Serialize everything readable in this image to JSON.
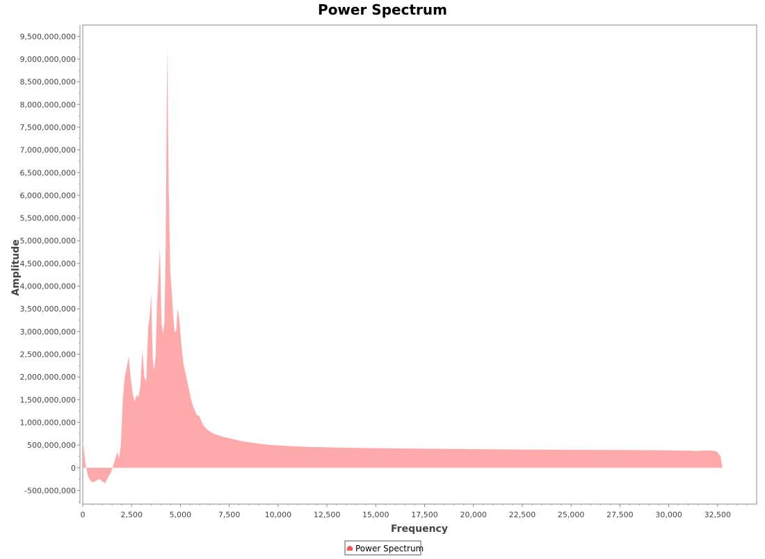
{
  "chart_data": {
    "type": "area",
    "title": "Power Spectrum",
    "xlabel": "Frequency",
    "ylabel": "Amplitude",
    "xlim": [
      0,
      34500
    ],
    "ylim": [
      -800000000,
      9750000000
    ],
    "x_ticks": [
      0,
      2500,
      5000,
      7500,
      10000,
      12500,
      15000,
      17500,
      20000,
      22500,
      25000,
      27500,
      30000,
      32500
    ],
    "x_tick_labels": [
      "0",
      "2,500",
      "5,000",
      "7,500",
      "10,000",
      "12,500",
      "15,000",
      "17,500",
      "20,000",
      "22,500",
      "25,000",
      "27,500",
      "30,000",
      "32,500"
    ],
    "y_ticks": [
      -500000000,
      0,
      500000000,
      1000000000,
      1500000000,
      2000000000,
      2500000000,
      3000000000,
      3500000000,
      4000000000,
      4500000000,
      5000000000,
      5500000000,
      6000000000,
      6500000000,
      7000000000,
      7500000000,
      8000000000,
      8500000000,
      9000000000,
      9500000000
    ],
    "y_tick_labels": [
      "-500,000,000",
      "0",
      "500,000,000",
      "1,000,000,000",
      "1,500,000,000",
      "2,000,000,000",
      "2,500,000,000",
      "3,000,000,000",
      "3,500,000,000",
      "4,000,000,000",
      "4,500,000,000",
      "5,000,000,000",
      "5,500,000,000",
      "6,000,000,000",
      "6,500,000,000",
      "7,000,000,000",
      "7,500,000,000",
      "8,000,000,000",
      "8,500,000,000",
      "9,000,000,000",
      "9,500,000,000"
    ],
    "grid": false,
    "legend_position": "bottom-center",
    "series": [
      {
        "name": "Power Spectrum",
        "color": "#ffaaaa",
        "x": [
          0,
          150,
          280,
          420,
          560,
          700,
          860,
          1000,
          1150,
          1300,
          1450,
          1600,
          1700,
          1780,
          1850,
          1950,
          2050,
          2150,
          2250,
          2350,
          2450,
          2550,
          2650,
          2750,
          2850,
          2950,
          3050,
          3150,
          3250,
          3350,
          3420,
          3500,
          3580,
          3650,
          3730,
          3800,
          3870,
          3950,
          4030,
          4100,
          4180,
          4250,
          4320,
          4400,
          4480,
          4560,
          4630,
          4700,
          4780,
          4860,
          4950,
          5050,
          5150,
          5250,
          5350,
          5450,
          5550,
          5650,
          5750,
          5850,
          5950,
          6050,
          6150,
          6250,
          6350,
          6500,
          6700,
          6900,
          7200,
          7500,
          7800,
          8200,
          8700,
          9200,
          9700,
          10500,
          11500,
          12500,
          13500,
          15000,
          17500,
          20000,
          22500,
          25000,
          27500,
          30000,
          30500,
          30800,
          31000,
          31300,
          31600,
          31900,
          32200,
          32450,
          32650,
          32750
        ],
        "values": [
          600000000,
          50000000,
          -200000000,
          -300000000,
          -320000000,
          -280000000,
          -250000000,
          -300000000,
          -340000000,
          -200000000,
          -100000000,
          100000000,
          250000000,
          350000000,
          200000000,
          500000000,
          1500000000,
          2000000000,
          2200000000,
          2450000000,
          2000000000,
          1650000000,
          1450000000,
          1600000000,
          1550000000,
          1800000000,
          2600000000,
          2000000000,
          1900000000,
          3100000000,
          3300000000,
          3850000000,
          2400000000,
          2150000000,
          2450000000,
          3600000000,
          4150000000,
          4850000000,
          3200000000,
          2950000000,
          3200000000,
          5000000000,
          9300000000,
          6200000000,
          4300000000,
          3850000000,
          3350000000,
          3000000000,
          3000000000,
          3500000000,
          3250000000,
          2700000000,
          2300000000,
          2100000000,
          1900000000,
          1700000000,
          1500000000,
          1350000000,
          1250000000,
          1150000000,
          1150000000,
          1050000000,
          950000000,
          900000000,
          850000000,
          800000000,
          750000000,
          720000000,
          680000000,
          650000000,
          620000000,
          580000000,
          550000000,
          520000000,
          500000000,
          480000000,
          460000000,
          450000000,
          440000000,
          430000000,
          420000000,
          410000000,
          400000000,
          395000000,
          390000000,
          385000000,
          380000000,
          375000000,
          380000000,
          370000000,
          375000000,
          380000000,
          380000000,
          360000000,
          250000000,
          0
        ]
      }
    ]
  }
}
